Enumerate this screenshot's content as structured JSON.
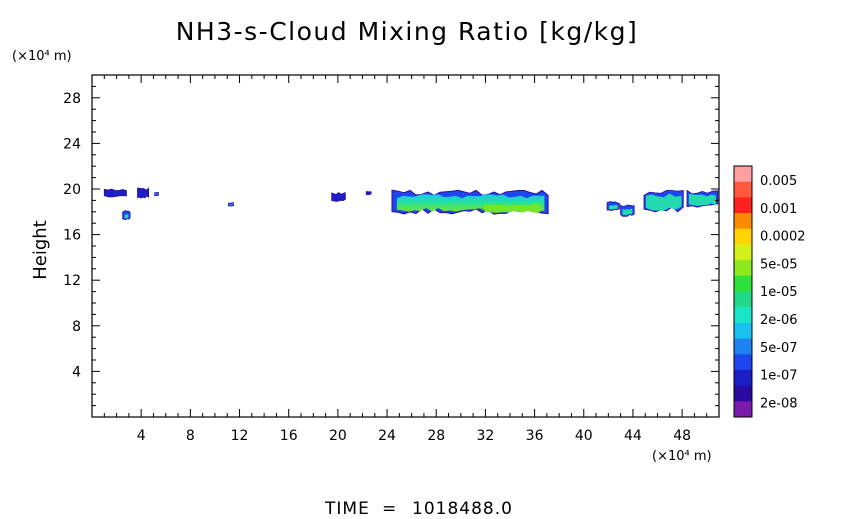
{
  "chart_data": {
    "type": "heatmap",
    "title": "NH3-s-Cloud Mixing Ratio [kg/kg]",
    "xlabel": "",
    "ylabel": "Height",
    "x_unit": "(×10⁴ m)",
    "y_unit": "(×10⁴ m)",
    "xlim": [
      0,
      51
    ],
    "ylim": [
      0,
      30
    ],
    "x_ticks": [
      4,
      8,
      12,
      16,
      20,
      24,
      28,
      32,
      36,
      40,
      44,
      48
    ],
    "y_ticks": [
      4,
      8,
      12,
      16,
      20,
      24,
      28
    ],
    "x_tick_labels": [
      "4",
      "8",
      "12",
      "16",
      "20",
      "24",
      "28",
      "32",
      "36",
      "40",
      "44",
      "48"
    ],
    "y_tick_labels": [
      "4",
      "8",
      "12",
      "16",
      "20",
      "24",
      "28"
    ],
    "colorbar": {
      "labels": [
        "0.005",
        "0.001",
        "0.0002",
        "5e-05",
        "1e-05",
        "2e-06",
        "5e-07",
        "1e-07",
        "2e-08"
      ],
      "colors": [
        "#ff9f9f",
        "#ff5a3c",
        "#ff2020",
        "#ff8a00",
        "#ffd400",
        "#d4f01a",
        "#8ee81e",
        "#2ee03a",
        "#22d98a",
        "#19e6c8",
        "#19c2ee",
        "#1e82f0",
        "#1e46ee",
        "#1c1ec8",
        "#2a0aa0",
        "#7a1aa8"
      ]
    },
    "cloud_patches": [
      {
        "x": [
          1.0,
          2.8
        ],
        "y": [
          19.3,
          20.0
        ],
        "level": "1e-07"
      },
      {
        "x": [
          3.7,
          4.6
        ],
        "y": [
          19.2,
          20.1
        ],
        "level": "1e-07"
      },
      {
        "x": [
          2.5,
          3.1
        ],
        "y": [
          17.3,
          18.1
        ],
        "level": "2e-06"
      },
      {
        "x": [
          5.1,
          5.4
        ],
        "y": [
          19.4,
          19.7
        ],
        "level": "5e-07"
      },
      {
        "x": [
          11.1,
          11.5
        ],
        "y": [
          18.5,
          18.8
        ],
        "level": "5e-07"
      },
      {
        "x": [
          19.5,
          20.6
        ],
        "y": [
          18.9,
          19.7
        ],
        "level": "1e-07"
      },
      {
        "x": [
          22.3,
          22.7
        ],
        "y": [
          19.5,
          19.8
        ],
        "level": "1e-07"
      },
      {
        "x": [
          24.4,
          37.1
        ],
        "y": [
          17.8,
          19.9
        ],
        "level": "5e-05"
      },
      {
        "x": [
          41.9,
          42.9
        ],
        "y": [
          18.1,
          18.9
        ],
        "level": "2e-06"
      },
      {
        "x": [
          43.0,
          44.1
        ],
        "y": [
          17.6,
          18.6
        ],
        "level": "2e-06"
      },
      {
        "x": [
          44.9,
          48.1
        ],
        "y": [
          18.0,
          19.9
        ],
        "level": "2e-06"
      },
      {
        "x": [
          48.4,
          50.9
        ],
        "y": [
          18.4,
          19.9
        ],
        "level": "2e-06"
      }
    ]
  },
  "footer": {
    "time_label": "TIME",
    "equals": "=",
    "time_value": "1018488.0"
  }
}
